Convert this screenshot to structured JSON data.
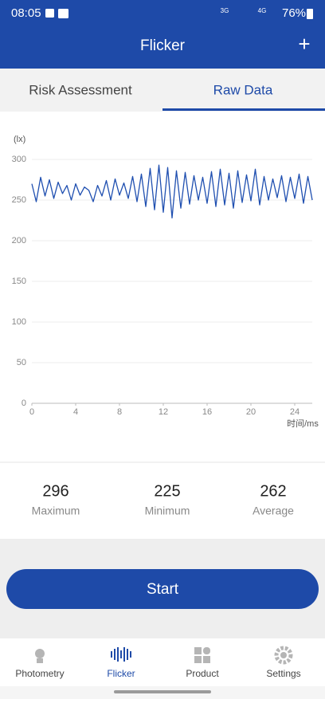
{
  "status_bar": {
    "time": "08:05",
    "network_1": "3G",
    "network_2": "4G",
    "battery": "76%"
  },
  "header": {
    "title": "Flicker",
    "action": "+"
  },
  "tabs": [
    {
      "label": "Risk Assessment",
      "active": false
    },
    {
      "label": "Raw Data",
      "active": true
    }
  ],
  "chart_data": {
    "type": "line",
    "y_label": "(lx)",
    "x_label": "时间/ms",
    "color": "#1f4fb0",
    "grid": true,
    "x": [
      0,
      0.4,
      0.8,
      1.2,
      1.6,
      2,
      2.4,
      2.8,
      3.2,
      3.6,
      4,
      4.4,
      4.8,
      5.2,
      5.6,
      6,
      6.4,
      6.8,
      7.2,
      7.6,
      8,
      8.4,
      8.8,
      9.2,
      9.6,
      10,
      10.4,
      10.8,
      11.2,
      11.6,
      12,
      12.4,
      12.8,
      13.2,
      13.6,
      14,
      14.4,
      14.8,
      15.2,
      15.6,
      16,
      16.4,
      16.8,
      17.2,
      17.6,
      18,
      18.4,
      18.8,
      19.2,
      19.6,
      20,
      20.4,
      20.8,
      21.2,
      21.6,
      22,
      22.4,
      22.8,
      23.2,
      23.6,
      24,
      24.4,
      24.8,
      25.2,
      25.6
    ],
    "values": [
      270,
      248,
      278,
      255,
      275,
      252,
      272,
      258,
      268,
      250,
      270,
      256,
      266,
      262,
      248,
      268,
      255,
      274,
      250,
      276,
      256,
      271,
      252,
      279,
      248,
      282,
      242,
      289,
      238,
      293,
      235,
      290,
      228,
      286,
      240,
      284,
      245,
      280,
      250,
      278,
      246,
      285,
      242,
      288,
      244,
      283,
      240,
      286,
      247,
      281,
      249,
      288,
      244,
      279,
      250,
      276,
      253,
      280,
      248,
      278,
      252,
      282,
      246,
      279,
      250
    ],
    "xlim": [
      0,
      25.6
    ],
    "ylim": [
      0,
      300
    ],
    "xticks": [
      0,
      4,
      8,
      12,
      16,
      20,
      24
    ],
    "yticks": [
      0,
      50,
      100,
      150,
      200,
      250,
      300
    ]
  },
  "stats": [
    {
      "value": "296",
      "label": "Maximum"
    },
    {
      "value": "225",
      "label": "Minimum"
    },
    {
      "value": "262",
      "label": "Average"
    }
  ],
  "button": {
    "label": "Start"
  },
  "nav": [
    {
      "label": "Photometry",
      "active": false
    },
    {
      "label": "Flicker",
      "active": true
    },
    {
      "label": "Product",
      "active": false
    },
    {
      "label": "Settings",
      "active": false
    }
  ]
}
